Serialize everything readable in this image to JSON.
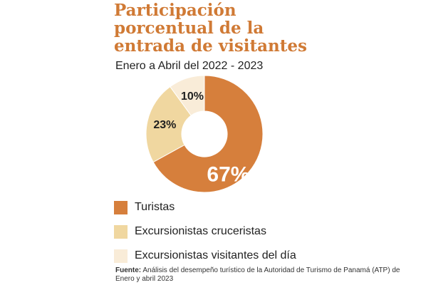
{
  "title_lines": [
    "Participación",
    "porcentual de la",
    "entrada de visitantes"
  ],
  "subtitle": "Enero a Abril del 2022 - 2023",
  "chart_data": {
    "type": "pie",
    "style": "donut",
    "categories": [
      "Turistas",
      "Excursionistas cruceristas",
      "Excursionistas visitantes del día"
    ],
    "values": [
      67,
      23,
      10
    ],
    "labels": [
      "67%",
      "23%",
      "10%"
    ],
    "colors": [
      "#d67f3c",
      "#f0d7a0",
      "#f9ecd8"
    ],
    "legend_position": "bottom-left"
  },
  "source": {
    "label": "Fuente:",
    "text": "Análisis del desempeño turístico de la Autoridad de Turismo de Panamá (ATP) de Enero y abril 2023"
  }
}
